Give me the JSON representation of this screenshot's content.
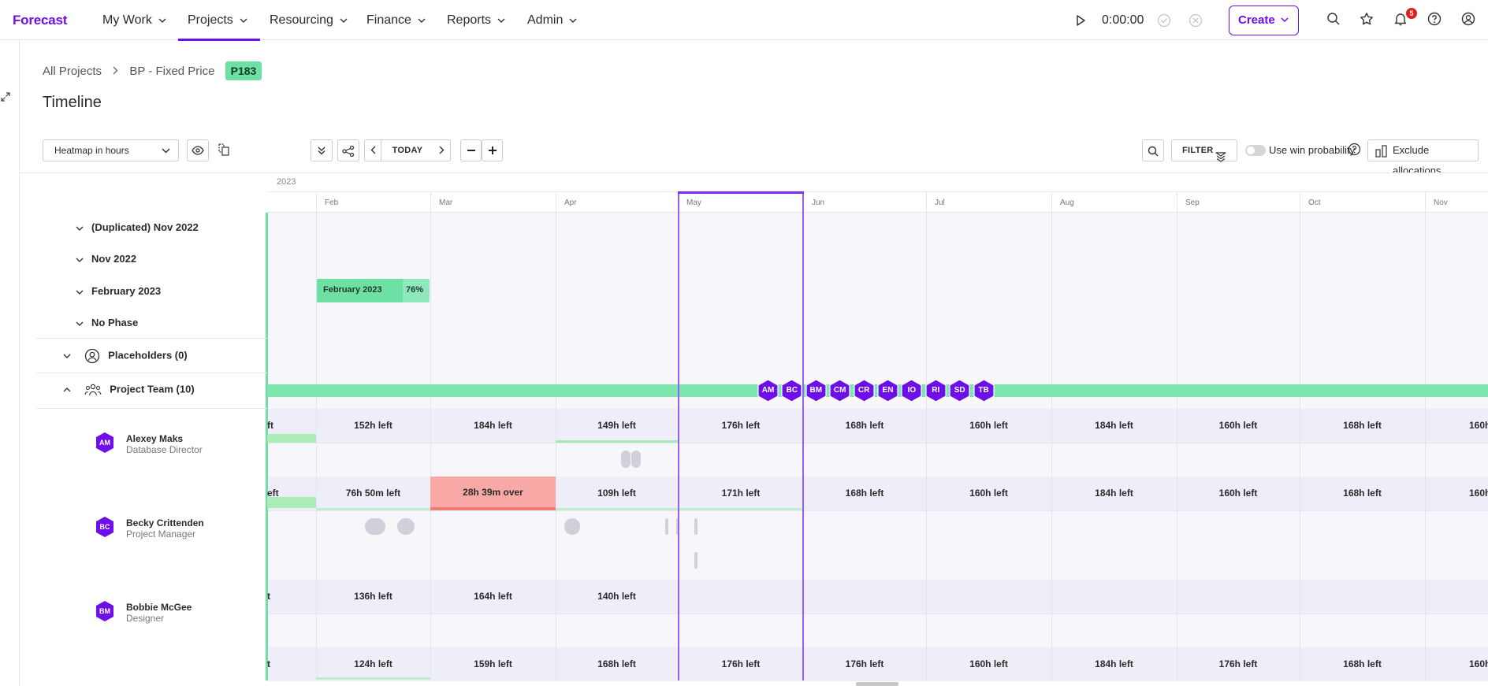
{
  "app": {
    "logo": "Forecast"
  },
  "nav": {
    "items": [
      "My Work",
      "Projects",
      "Resourcing",
      "Finance",
      "Reports",
      "Admin"
    ],
    "active": "Projects"
  },
  "timer": {
    "value": "0:00:00"
  },
  "create_label": "Create",
  "notifications": {
    "count": "5"
  },
  "breadcrumb": {
    "root": "All Projects",
    "project": "BP - Fixed Price",
    "badge": "P183"
  },
  "page_title": "Timeline",
  "toolbar": {
    "heatmap_select": "Heatmap in hours",
    "today_label": "TODAY",
    "filter_label": "FILTER",
    "win_probability_label": "Use win probability",
    "exclude_allocations_label": "Exclude allocations"
  },
  "timeline": {
    "year": "2023",
    "months": [
      "Feb",
      "Mar",
      "Apr",
      "May",
      "Jun",
      "Jul",
      "Aug",
      "Sep",
      "Oct",
      "Nov"
    ],
    "current_month": "May"
  },
  "phases": [
    {
      "label": "(Duplicated) Nov 2022"
    },
    {
      "label": "Nov 2022"
    },
    {
      "label": "February 2023"
    },
    {
      "label": "No Phase"
    }
  ],
  "phase_bar": {
    "name": "February 2023",
    "percent": "76%"
  },
  "placeholders_label": "Placeholders (0)",
  "project_team_label": "Project Team (10)",
  "team_initials": [
    "AM",
    "BC",
    "BM",
    "CM",
    "CR",
    "EN",
    "IO",
    "RI",
    "SD",
    "TB"
  ],
  "people": [
    {
      "initials": "AM",
      "name": "Alexey Maks",
      "role": "Database Director",
      "cells": [
        "ft",
        "152h left",
        "184h left",
        "149h left",
        "176h left",
        "168h left",
        "160h left",
        "184h left",
        "160h left",
        "168h left",
        "160h"
      ]
    },
    {
      "initials": "BC",
      "name": "Becky Crittenden",
      "role": "Project Manager",
      "cells": [
        "eft",
        "76h 50m left",
        "28h 39m over",
        "109h left",
        "171h left",
        "168h left",
        "160h left",
        "184h left",
        "160h left",
        "168h left",
        "160h"
      ]
    },
    {
      "initials": "BM",
      "name": "Bobbie McGee",
      "role": "Designer",
      "cells": [
        "t",
        "136h left",
        "164h left",
        "140h left"
      ]
    },
    {
      "initials": "",
      "name": "",
      "role": "",
      "cells": [
        "t",
        "124h left",
        "159h left",
        "168h left",
        "176h left",
        "176h left",
        "160h left",
        "184h left",
        "176h left",
        "168h left",
        "160h"
      ]
    }
  ],
  "colors": {
    "brand": "#6e0fea",
    "phase_green": "#6ee0a4",
    "over_allocation": "#f8a9a6",
    "current_period": "#9b5cf0"
  }
}
